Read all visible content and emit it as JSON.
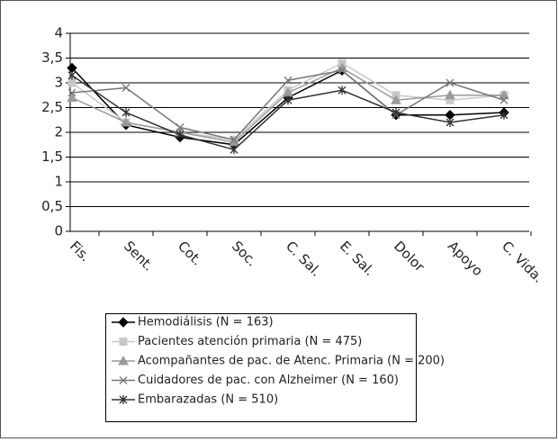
{
  "chart_data": {
    "type": "line",
    "categories": [
      "Fis.",
      "Sent.",
      "Cot.",
      "Soc.",
      "C. Sal.",
      "E. Sal.",
      "Dolor",
      "Apoyo",
      "C. Vida."
    ],
    "series": [
      {
        "name": "Hemodiálisis (N = 163)",
        "color": "#000000",
        "marker": "diamond",
        "values": [
          3.3,
          2.15,
          1.9,
          1.75,
          2.7,
          3.25,
          2.35,
          2.35,
          2.4
        ]
      },
      {
        "name": "Pacientes atención primaria (N = 475)",
        "color": "#c8c8c8",
        "marker": "square",
        "values": [
          3.0,
          2.2,
          2.0,
          1.85,
          2.85,
          3.4,
          2.75,
          2.65,
          2.75
        ]
      },
      {
        "name": "Acompañantes de pac. de Atenc. Primaria (N = 200)",
        "color": "#9a9a9a",
        "marker": "triangle",
        "values": [
          2.7,
          2.2,
          2.0,
          1.8,
          2.8,
          3.3,
          2.65,
          2.75,
          2.75
        ]
      },
      {
        "name": "Cuidadores de pac. con Alzheimer (N = 160)",
        "color": "#777777",
        "marker": "x",
        "values": [
          2.8,
          2.9,
          2.1,
          1.85,
          3.05,
          3.25,
          2.35,
          3.0,
          2.65
        ]
      },
      {
        "name": "Embarazadas (N = 510)",
        "color": "#333333",
        "marker": "star",
        "values": [
          3.15,
          2.4,
          1.95,
          1.65,
          2.65,
          2.85,
          2.4,
          2.2,
          2.35
        ]
      }
    ],
    "ylim": [
      0,
      4
    ],
    "yticks": [
      0,
      {
        "value": 0.5,
        "label": "0,5"
      },
      1,
      {
        "value": 1.5,
        "label": "1,5"
      },
      2,
      {
        "value": 2.5,
        "label": "2,5"
      },
      3,
      {
        "value": 3.5,
        "label": "3,5"
      },
      4
    ],
    "grid": true
  }
}
